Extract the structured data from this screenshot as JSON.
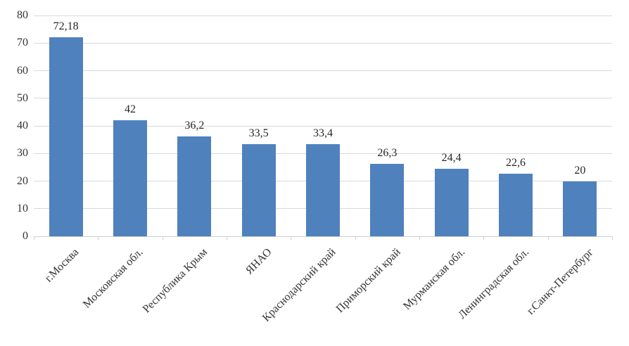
{
  "chart_data": {
    "type": "bar",
    "title": "",
    "xlabel": "",
    "ylabel": "",
    "categories": [
      "г.Москва",
      "Московская обл.",
      "Республика Крым",
      "ЯНАО",
      "Краснодарский край",
      "Приморский край",
      "Мурманская обл.",
      "Ленинградская обл.",
      "г.Санкт-Петербург"
    ],
    "values": [
      72.18,
      42,
      36.2,
      33.5,
      33.4,
      26.3,
      24.4,
      22.6,
      20
    ],
    "value_labels": [
      "72,18",
      "42",
      "36,2",
      "33,5",
      "33,4",
      "26,3",
      "24,4",
      "22,6",
      "20"
    ],
    "ylim": [
      0,
      80
    ],
    "ytick_step": 10,
    "ytick_labels": [
      "0",
      "10",
      "20",
      "30",
      "40",
      "50",
      "60",
      "70",
      "80"
    ],
    "grid": true,
    "legend": false,
    "bar_color": "#4F81BD",
    "gridline_color": "#d9d9d9",
    "axis_color": "#cfcfcf",
    "text_color": "#333333",
    "value_label_color": "#262626"
  }
}
